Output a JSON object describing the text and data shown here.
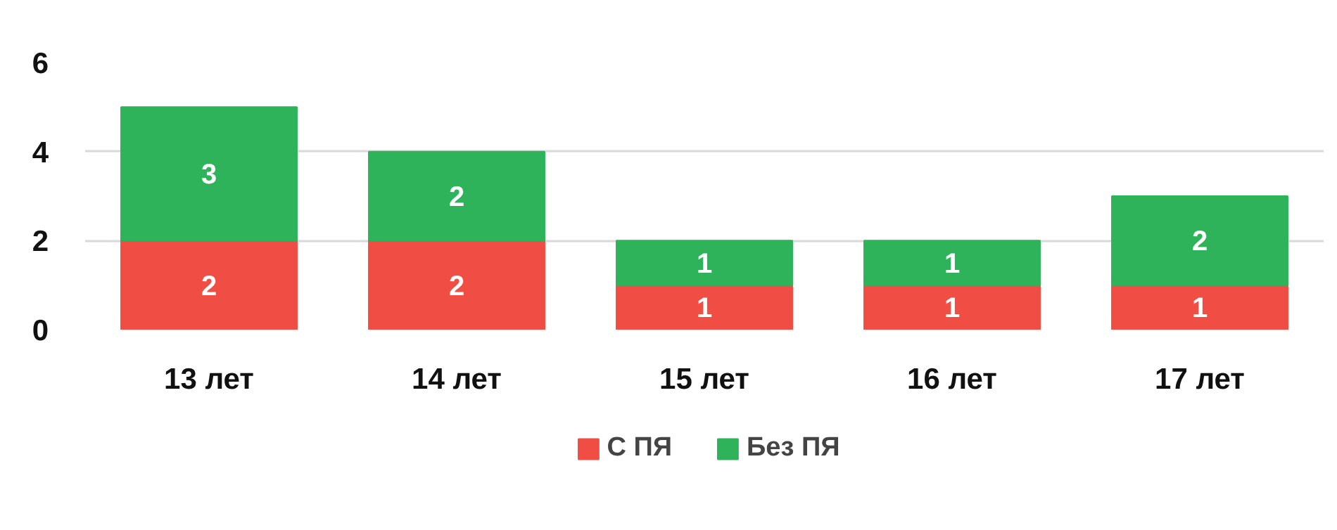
{
  "chart_data": {
    "type": "bar",
    "stacked": true,
    "categories": [
      "13 лет",
      "14 лет",
      "15 лет",
      "16 лет",
      "17 лет"
    ],
    "series": [
      {
        "name": "С ПЯ",
        "color": "#f04e45",
        "values": [
          2,
          2,
          1,
          1,
          1
        ]
      },
      {
        "name": "Без ПЯ",
        "color": "#2eb35a",
        "values": [
          3,
          2,
          1,
          1,
          2
        ]
      }
    ],
    "ylim": [
      0,
      6
    ],
    "yticks": [
      0,
      2,
      4,
      6
    ],
    "grid": "y",
    "legend": "bottom",
    "data_labels": true
  }
}
